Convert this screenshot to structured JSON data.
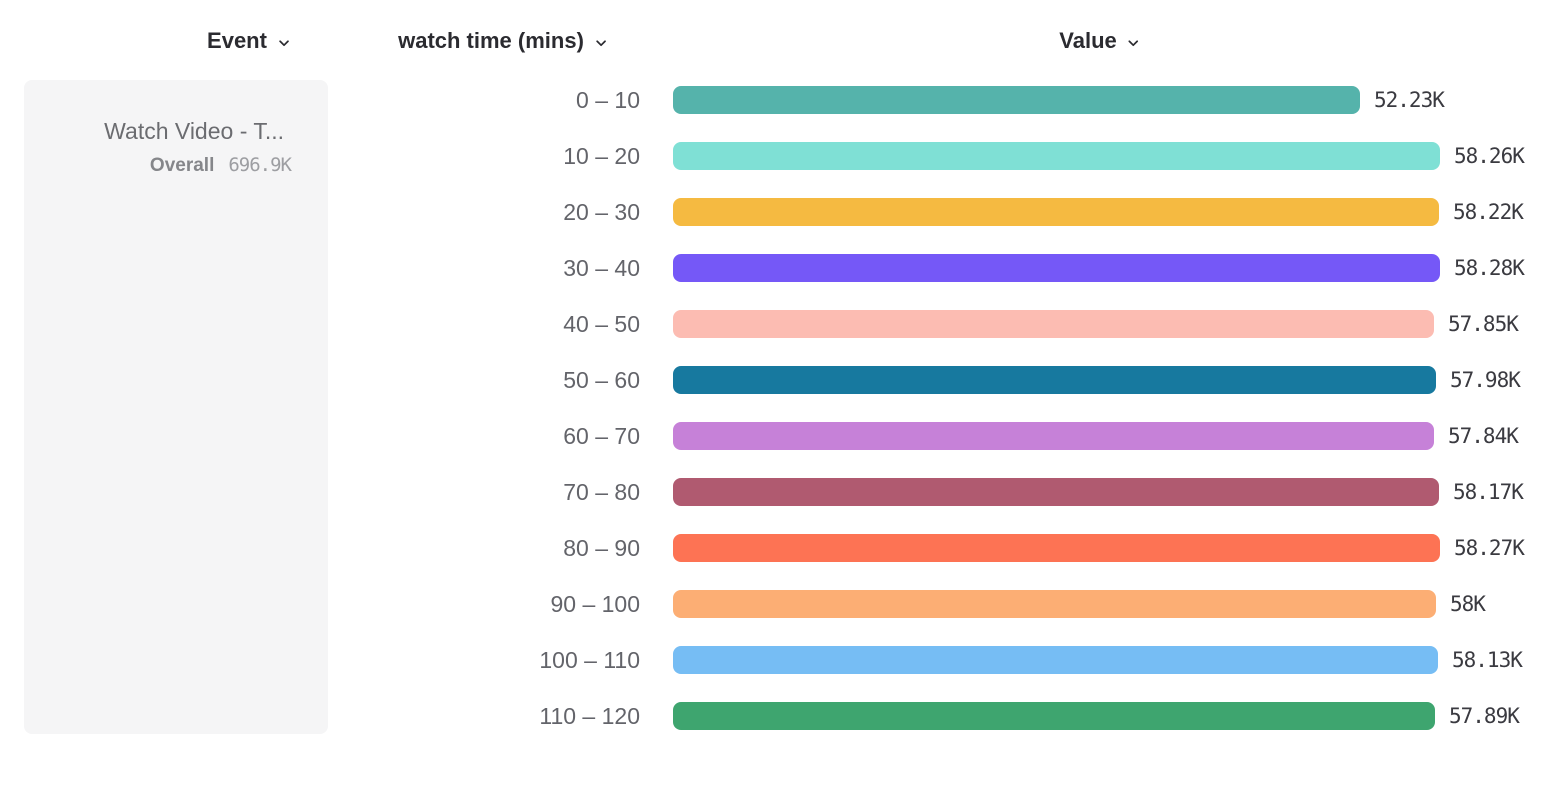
{
  "columns": {
    "event": {
      "label": "Event"
    },
    "breakdown": {
      "label": "watch time (mins)"
    },
    "value": {
      "label": "Value"
    }
  },
  "event_card": {
    "title": "Watch Video - T...",
    "overall_label": "Overall",
    "overall_value": "696.9K"
  },
  "icons": {
    "chevron_down": "chevron-down-icon"
  },
  "chart_data": {
    "type": "bar",
    "orientation": "horizontal",
    "title": "",
    "xlabel": "Value",
    "ylabel": "watch time (mins)",
    "xlim": [
      0,
      58.28
    ],
    "grid": false,
    "legend": "none",
    "categories": [
      "0 – 10",
      "10 – 20",
      "20 – 30",
      "30 – 40",
      "40 – 50",
      "50 – 60",
      "60 – 70",
      "70 – 80",
      "80 – 90",
      "90 – 100",
      "100 – 110",
      "110 – 120"
    ],
    "values": [
      52.23,
      58.26,
      58.22,
      58.28,
      57.85,
      57.98,
      57.84,
      58.17,
      58.27,
      58.0,
      58.13,
      57.89
    ],
    "value_labels": [
      "52.23K",
      "58.26K",
      "58.22K",
      "58.28K",
      "57.85K",
      "57.98K",
      "57.84K",
      "58.17K",
      "58.27K",
      "58K",
      "58.13K",
      "57.89K"
    ],
    "bar_colors": [
      "#55b3ab",
      "#7fe0d5",
      "#f5ba41",
      "#7558f7",
      "#fcbcb2",
      "#17799f",
      "#c681d8",
      "#b05a70",
      "#fd7354",
      "#fcae74",
      "#76bdf4",
      "#3ea56f"
    ],
    "value_unit": "K"
  }
}
